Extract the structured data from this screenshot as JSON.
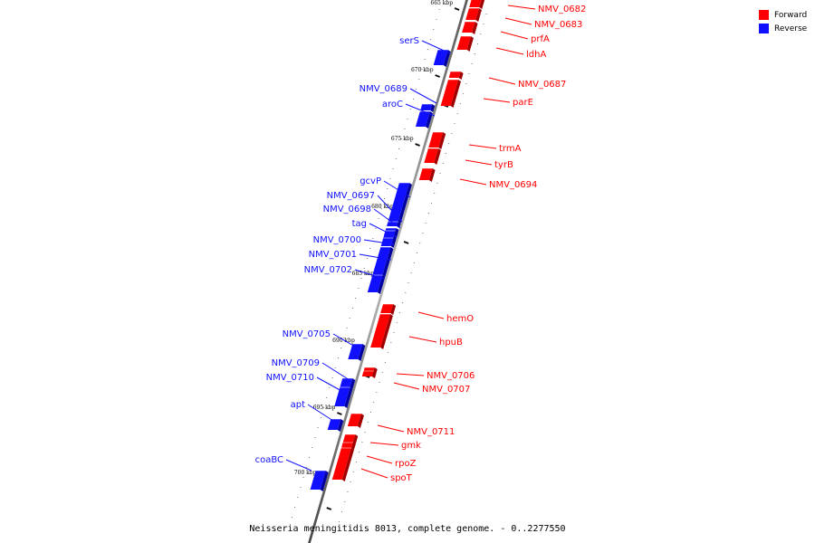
{
  "legend": {
    "forward": {
      "label": "Forward",
      "color": "#ff0000"
    },
    "reverse": {
      "label": "Reverse",
      "color": "#1010ff"
    }
  },
  "caption": "Neisseria meningitidis 8013, complete genome. - 0..2277550",
  "scale_ticks": [
    {
      "label": "665 kbp",
      "kbp": 665
    },
    {
      "label": "670 kbp",
      "kbp": 670
    },
    {
      "label": "675 kbp",
      "kbp": 675
    },
    {
      "label": "680 kbp",
      "kbp": 680
    },
    {
      "label": "685 kbp",
      "kbp": 685
    },
    {
      "label": "690 kbp",
      "kbp": 690
    },
    {
      "label": "695 kbp",
      "kbp": 695
    },
    {
      "label": "700 kbp",
      "kbp": 700
    }
  ],
  "genes": [
    {
      "name": "NMV_0682",
      "strand": "forward"
    },
    {
      "name": "NMV_0683",
      "strand": "forward"
    },
    {
      "name": "prfA",
      "strand": "forward"
    },
    {
      "name": "ldhA",
      "strand": "forward"
    },
    {
      "name": "serS",
      "strand": "reverse"
    },
    {
      "name": "NMV_0687",
      "strand": "forward"
    },
    {
      "name": "parE",
      "strand": "forward"
    },
    {
      "name": "NMV_0689",
      "strand": "reverse"
    },
    {
      "name": "aroC",
      "strand": "reverse"
    },
    {
      "name": "trmA",
      "strand": "forward"
    },
    {
      "name": "tyrB",
      "strand": "forward"
    },
    {
      "name": "NMV_0694",
      "strand": "forward"
    },
    {
      "name": "gcvP",
      "strand": "reverse"
    },
    {
      "name": "NMV_0697",
      "strand": "reverse"
    },
    {
      "name": "NMV_0698",
      "strand": "reverse"
    },
    {
      "name": "tag",
      "strand": "reverse"
    },
    {
      "name": "NMV_0700",
      "strand": "reverse"
    },
    {
      "name": "NMV_0701",
      "strand": "reverse"
    },
    {
      "name": "NMV_0702",
      "strand": "reverse"
    },
    {
      "name": "hemO",
      "strand": "forward"
    },
    {
      "name": "hpuB",
      "strand": "forward"
    },
    {
      "name": "NMV_0705",
      "strand": "reverse"
    },
    {
      "name": "NMV_0706",
      "strand": "forward"
    },
    {
      "name": "NMV_0707",
      "strand": "forward"
    },
    {
      "name": "NMV_0709",
      "strand": "reverse"
    },
    {
      "name": "NMV_0710",
      "strand": "reverse"
    },
    {
      "name": "NMV_0711",
      "strand": "forward"
    },
    {
      "name": "gmk",
      "strand": "forward"
    },
    {
      "name": "apt",
      "strand": "reverse"
    },
    {
      "name": "rpoZ",
      "strand": "forward"
    },
    {
      "name": "spoT",
      "strand": "forward"
    },
    {
      "name": "coaBC",
      "strand": "reverse"
    }
  ]
}
